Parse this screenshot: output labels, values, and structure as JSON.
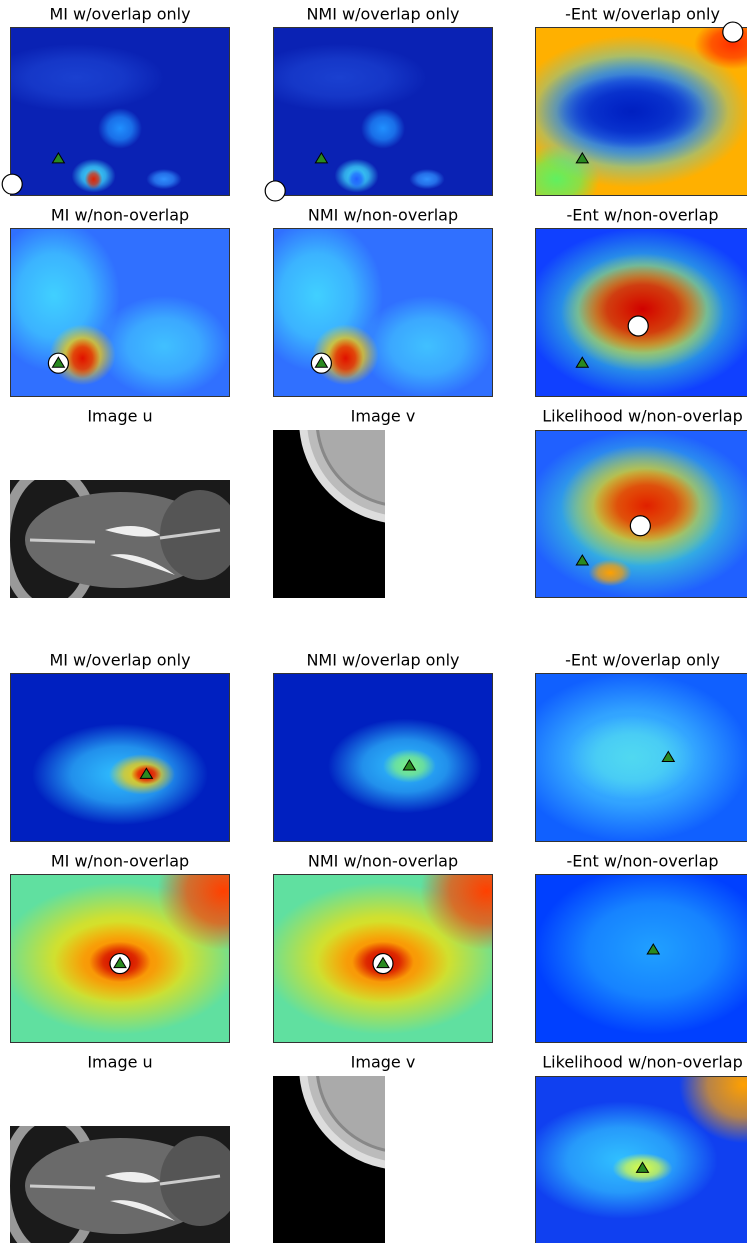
{
  "groups": [
    {
      "panels": [
        {
          "title": "MI w/overlap only"
        },
        {
          "title": "NMI w/overlap only"
        },
        {
          "title": "-Ent w/overlap only"
        },
        {
          "title": "MI w/non-overlap"
        },
        {
          "title": "NMI w/non-overlap"
        },
        {
          "title": "-Ent w/non-overlap"
        },
        {
          "title": "Image u"
        },
        {
          "title": "Image v"
        },
        {
          "title": "Likelihood w/non-overlap"
        }
      ]
    },
    {
      "panels": [
        {
          "title": "MI w/overlap only"
        },
        {
          "title": "NMI w/overlap only"
        },
        {
          "title": "-Ent w/overlap only"
        },
        {
          "title": "MI w/non-overlap"
        },
        {
          "title": "NMI w/non-overlap"
        },
        {
          "title": "-Ent w/non-overlap"
        },
        {
          "title": "Image u"
        },
        {
          "title": "Image v"
        },
        {
          "title": "Likelihood w/non-overlap"
        }
      ]
    }
  ]
}
